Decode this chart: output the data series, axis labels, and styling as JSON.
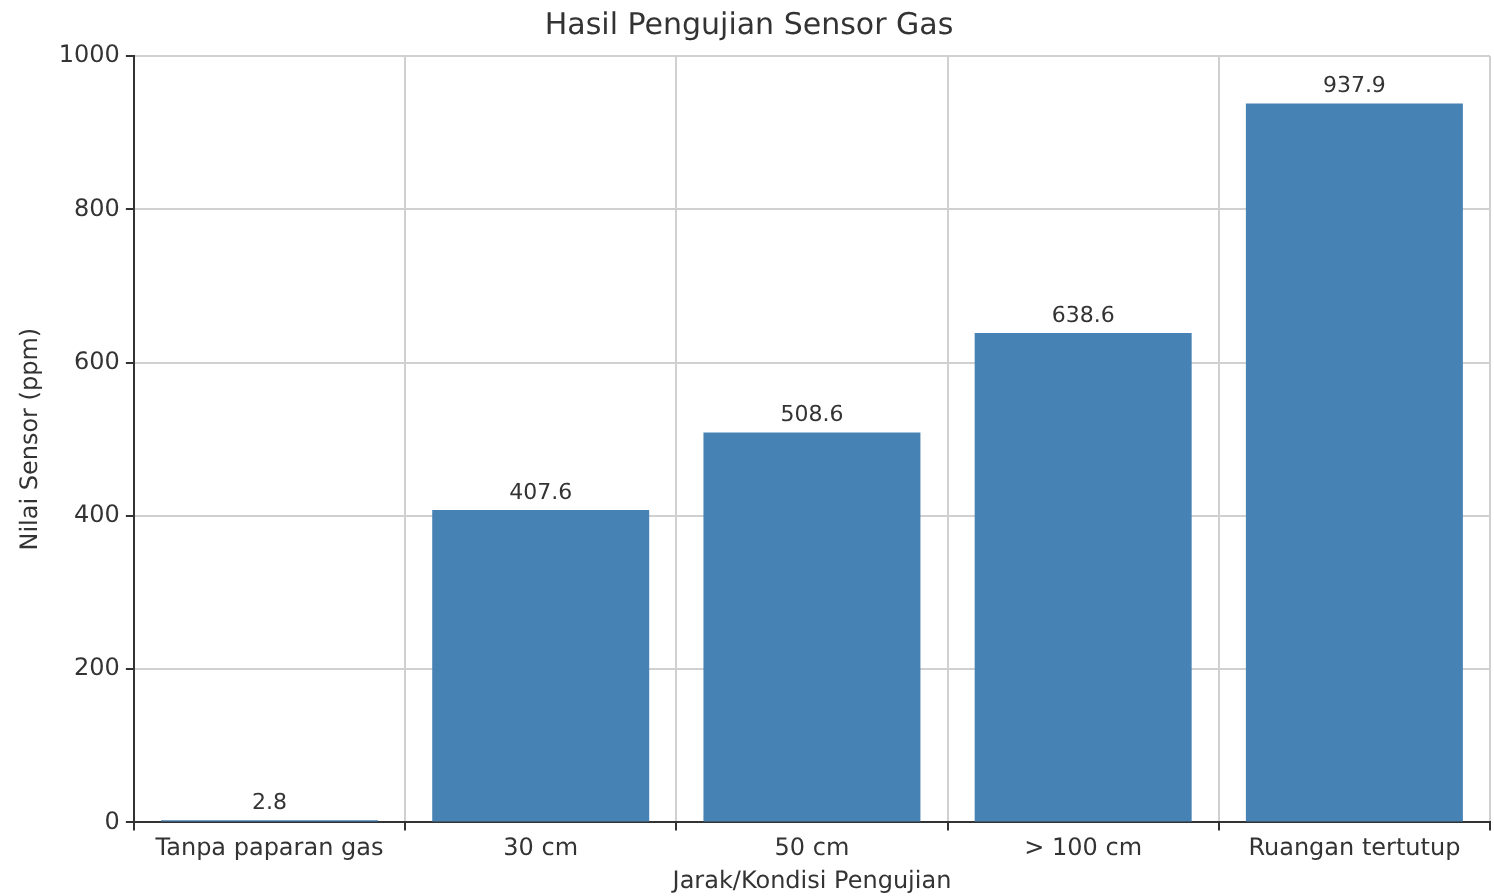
{
  "chart_data": {
    "type": "bar",
    "title": "Hasil Pengujian Sensor Gas",
    "xlabel": "Jarak/Kondisi Pengujian",
    "ylabel": "Nilai Sensor (ppm)",
    "categories": [
      "Tanpa paparan gas",
      "30 cm",
      "50 cm",
      "> 100 cm",
      "Ruangan tertutup"
    ],
    "values": [
      2.8,
      407.6,
      508.6,
      638.6,
      937.9
    ],
    "color": "#4682b4",
    "ylim": [
      0,
      1000
    ],
    "yticks": [
      0,
      200,
      400,
      600,
      800,
      1000
    ],
    "grid": true,
    "data_labels": true
  }
}
